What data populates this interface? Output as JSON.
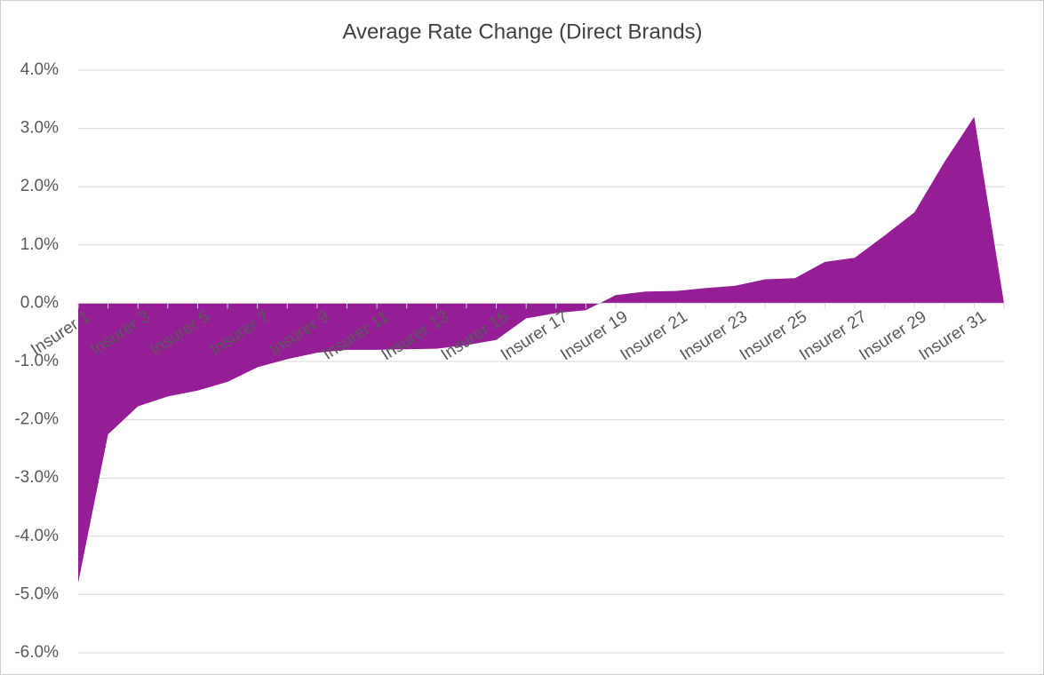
{
  "chart_data": {
    "type": "area",
    "title": "Average Rate Change (Direct Brands)",
    "categories": [
      "Insurer 1",
      null,
      "Insurer 3",
      null,
      "Insurer 5",
      null,
      "Insurer 7",
      null,
      "Insurer 9",
      null,
      "Insurer 11",
      null,
      "Insurer 13",
      null,
      "Insurer 15",
      null,
      "Insurer 17",
      null,
      "Insurer 19",
      null,
      "Insurer 21",
      null,
      "Insurer 23",
      null,
      "Insurer 25",
      null,
      "Insurer 27",
      null,
      "Insurer 29",
      null,
      "Insurer 31",
      null
    ],
    "values": [
      -4.8,
      -2.25,
      -1.77,
      -1.6,
      -1.5,
      -1.35,
      -1.1,
      -0.96,
      -0.85,
      -0.8,
      -0.8,
      -0.79,
      -0.78,
      -0.72,
      -0.63,
      -0.26,
      -0.17,
      -0.12,
      0.14,
      0.2,
      0.21,
      0.26,
      0.3,
      0.41,
      0.43,
      0.71,
      0.78,
      1.16,
      1.56,
      2.42,
      3.2,
      0
    ],
    "color": "#951d95",
    "ylim": [
      -6,
      4
    ],
    "yticks": [
      {
        "value": -6,
        "label": "-6.0%"
      },
      {
        "value": -5,
        "label": "-5.0%"
      },
      {
        "value": -4,
        "label": "-4.0%"
      },
      {
        "value": -3,
        "label": "-3.0%"
      },
      {
        "value": -2,
        "label": "-2.0%"
      },
      {
        "value": -1,
        "label": "-1.0%"
      },
      {
        "value": 0,
        "label": "0.0%"
      },
      {
        "value": 1,
        "label": "1.0%"
      },
      {
        "value": 2,
        "label": "2.0%"
      },
      {
        "value": 3,
        "label": "3.0%"
      },
      {
        "value": 4,
        "label": "4.0%"
      }
    ],
    "grid": true
  }
}
